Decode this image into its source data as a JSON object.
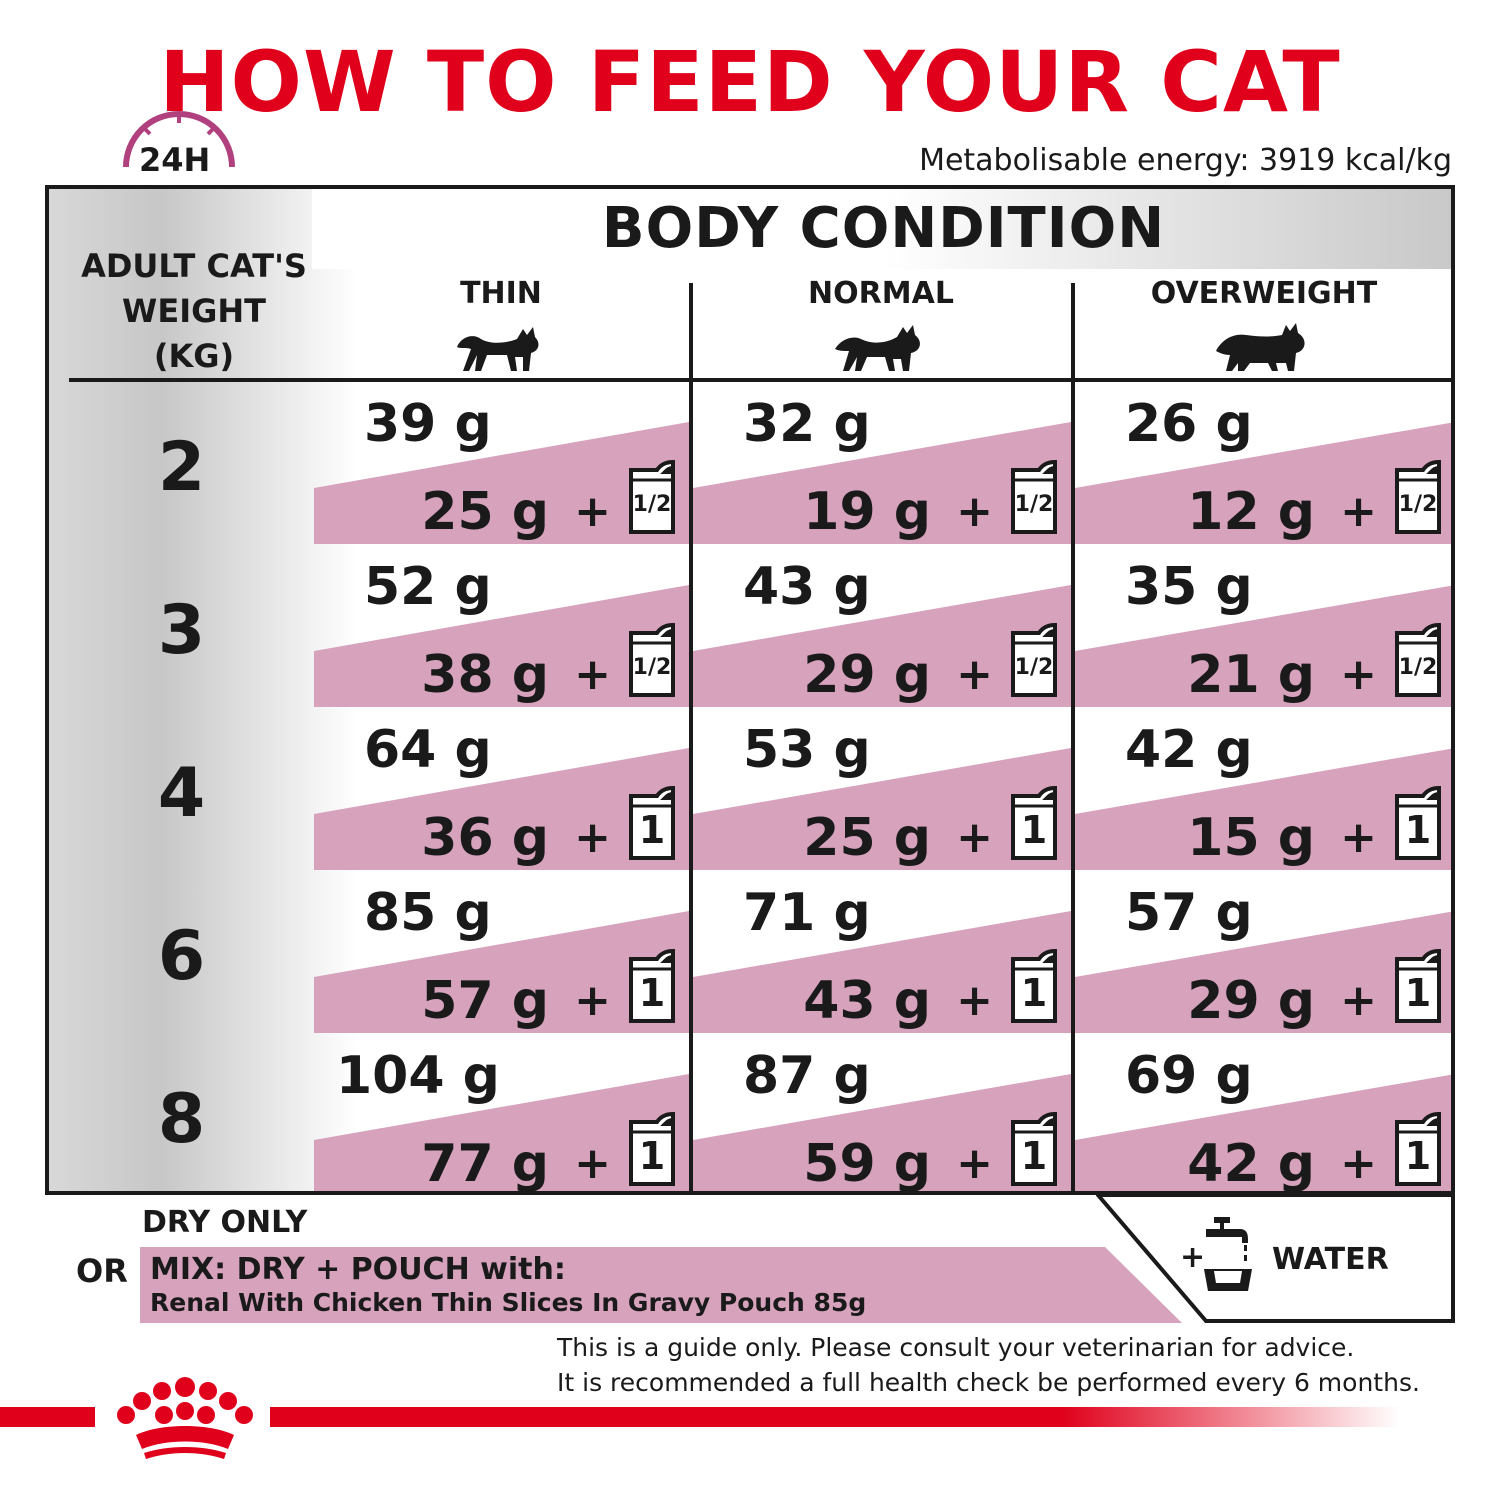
{
  "title": "HOW TO FEED YOUR CAT",
  "badge": "24H",
  "energy": "Metabolisable energy: 3919 kcal/kg",
  "table": {
    "weight_header": [
      "ADULT CAT'S",
      "WEIGHT",
      "(KG)"
    ],
    "body_condition_header": "BODY CONDITION",
    "columns": [
      "THIN",
      "NORMAL",
      "OVERWEIGHT"
    ],
    "rows": [
      {
        "weight": "2",
        "cells": [
          {
            "dry": "39 g",
            "mix": "25 g",
            "pouch": "1/2"
          },
          {
            "dry": "32 g",
            "mix": "19 g",
            "pouch": "1/2"
          },
          {
            "dry": "26 g",
            "mix": "12 g",
            "pouch": "1/2"
          }
        ]
      },
      {
        "weight": "3",
        "cells": [
          {
            "dry": "52 g",
            "mix": "38 g",
            "pouch": "1/2"
          },
          {
            "dry": "43 g",
            "mix": "29 g",
            "pouch": "1/2"
          },
          {
            "dry": "35 g",
            "mix": "21 g",
            "pouch": "1/2"
          }
        ]
      },
      {
        "weight": "4",
        "cells": [
          {
            "dry": "64 g",
            "mix": "36 g",
            "pouch": "1"
          },
          {
            "dry": "53 g",
            "mix": "25 g",
            "pouch": "1"
          },
          {
            "dry": "42 g",
            "mix": "15 g",
            "pouch": "1"
          }
        ]
      },
      {
        "weight": "6",
        "cells": [
          {
            "dry": "85 g",
            "mix": "57 g",
            "pouch": "1"
          },
          {
            "dry": "71 g",
            "mix": "43 g",
            "pouch": "1"
          },
          {
            "dry": "57 g",
            "mix": "29 g",
            "pouch": "1"
          }
        ]
      },
      {
        "weight": "8",
        "cells": [
          {
            "dry": "104 g",
            "mix": "77 g",
            "pouch": "1"
          },
          {
            "dry": "87 g",
            "mix": "59 g",
            "pouch": "1"
          },
          {
            "dry": "69 g",
            "mix": "42 g",
            "pouch": "1"
          }
        ]
      }
    ],
    "plus": "+"
  },
  "legend": {
    "dry_only": "DRY ONLY",
    "or": "OR",
    "mix_line1": "MIX: DRY + POUCH with:",
    "mix_line2": "Renal With Chicken Thin Slices In Gravy Pouch 85g",
    "water_plus": "+",
    "water": "WATER"
  },
  "disclaimer": [
    "This is a guide only. Please consult your veterinarian for advice.",
    "It is recommended a full health check be performed every 6 months."
  ],
  "colors": {
    "brand_red": "#e0001b",
    "pink": "#d6a2bc",
    "badge_magenta": "#b0417e"
  }
}
